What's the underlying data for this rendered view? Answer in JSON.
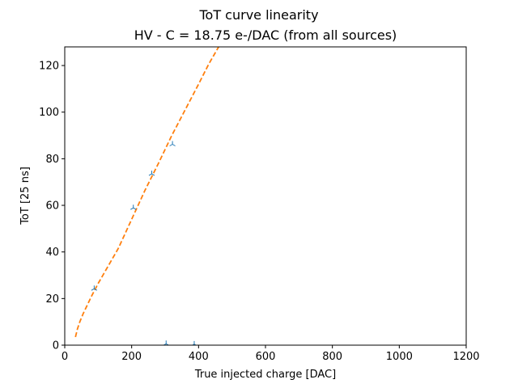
{
  "chart_data": {
    "type": "scatter",
    "title": "ToT curve linearity",
    "subtitle": "HV - C = 18.75 e-/DAC (from all sources)",
    "xlabel": "True injected charge [DAC]",
    "ylabel": "ToT [25 ns]",
    "xlim": [
      0,
      1200
    ],
    "ylim": [
      0,
      128
    ],
    "xticks": [
      0,
      200,
      400,
      600,
      800,
      1000,
      1200
    ],
    "yticks": [
      0,
      20,
      40,
      60,
      80,
      100,
      120
    ],
    "grid": false,
    "series": [
      {
        "kind": "points",
        "marker": "tri",
        "color": "#1f77b4",
        "x": [
          88,
          205,
          260,
          322,
          303,
          387
        ],
        "y": [
          24.2,
          58.9,
          73.5,
          86.2,
          0.6,
          0.4
        ]
      },
      {
        "kind": "dashed-line",
        "color": "#ff7f0e",
        "x": [
          32,
          38,
          45,
          55,
          65,
          80,
          100,
          130,
          160,
          200,
          240,
          280,
          320,
          360,
          400,
          430,
          460
        ],
        "y": [
          3.5,
          7,
          10,
          13.5,
          16.5,
          21,
          26.5,
          34,
          41.5,
          54,
          66.5,
          78,
          90,
          101,
          112,
          120.5,
          128
        ]
      }
    ]
  }
}
